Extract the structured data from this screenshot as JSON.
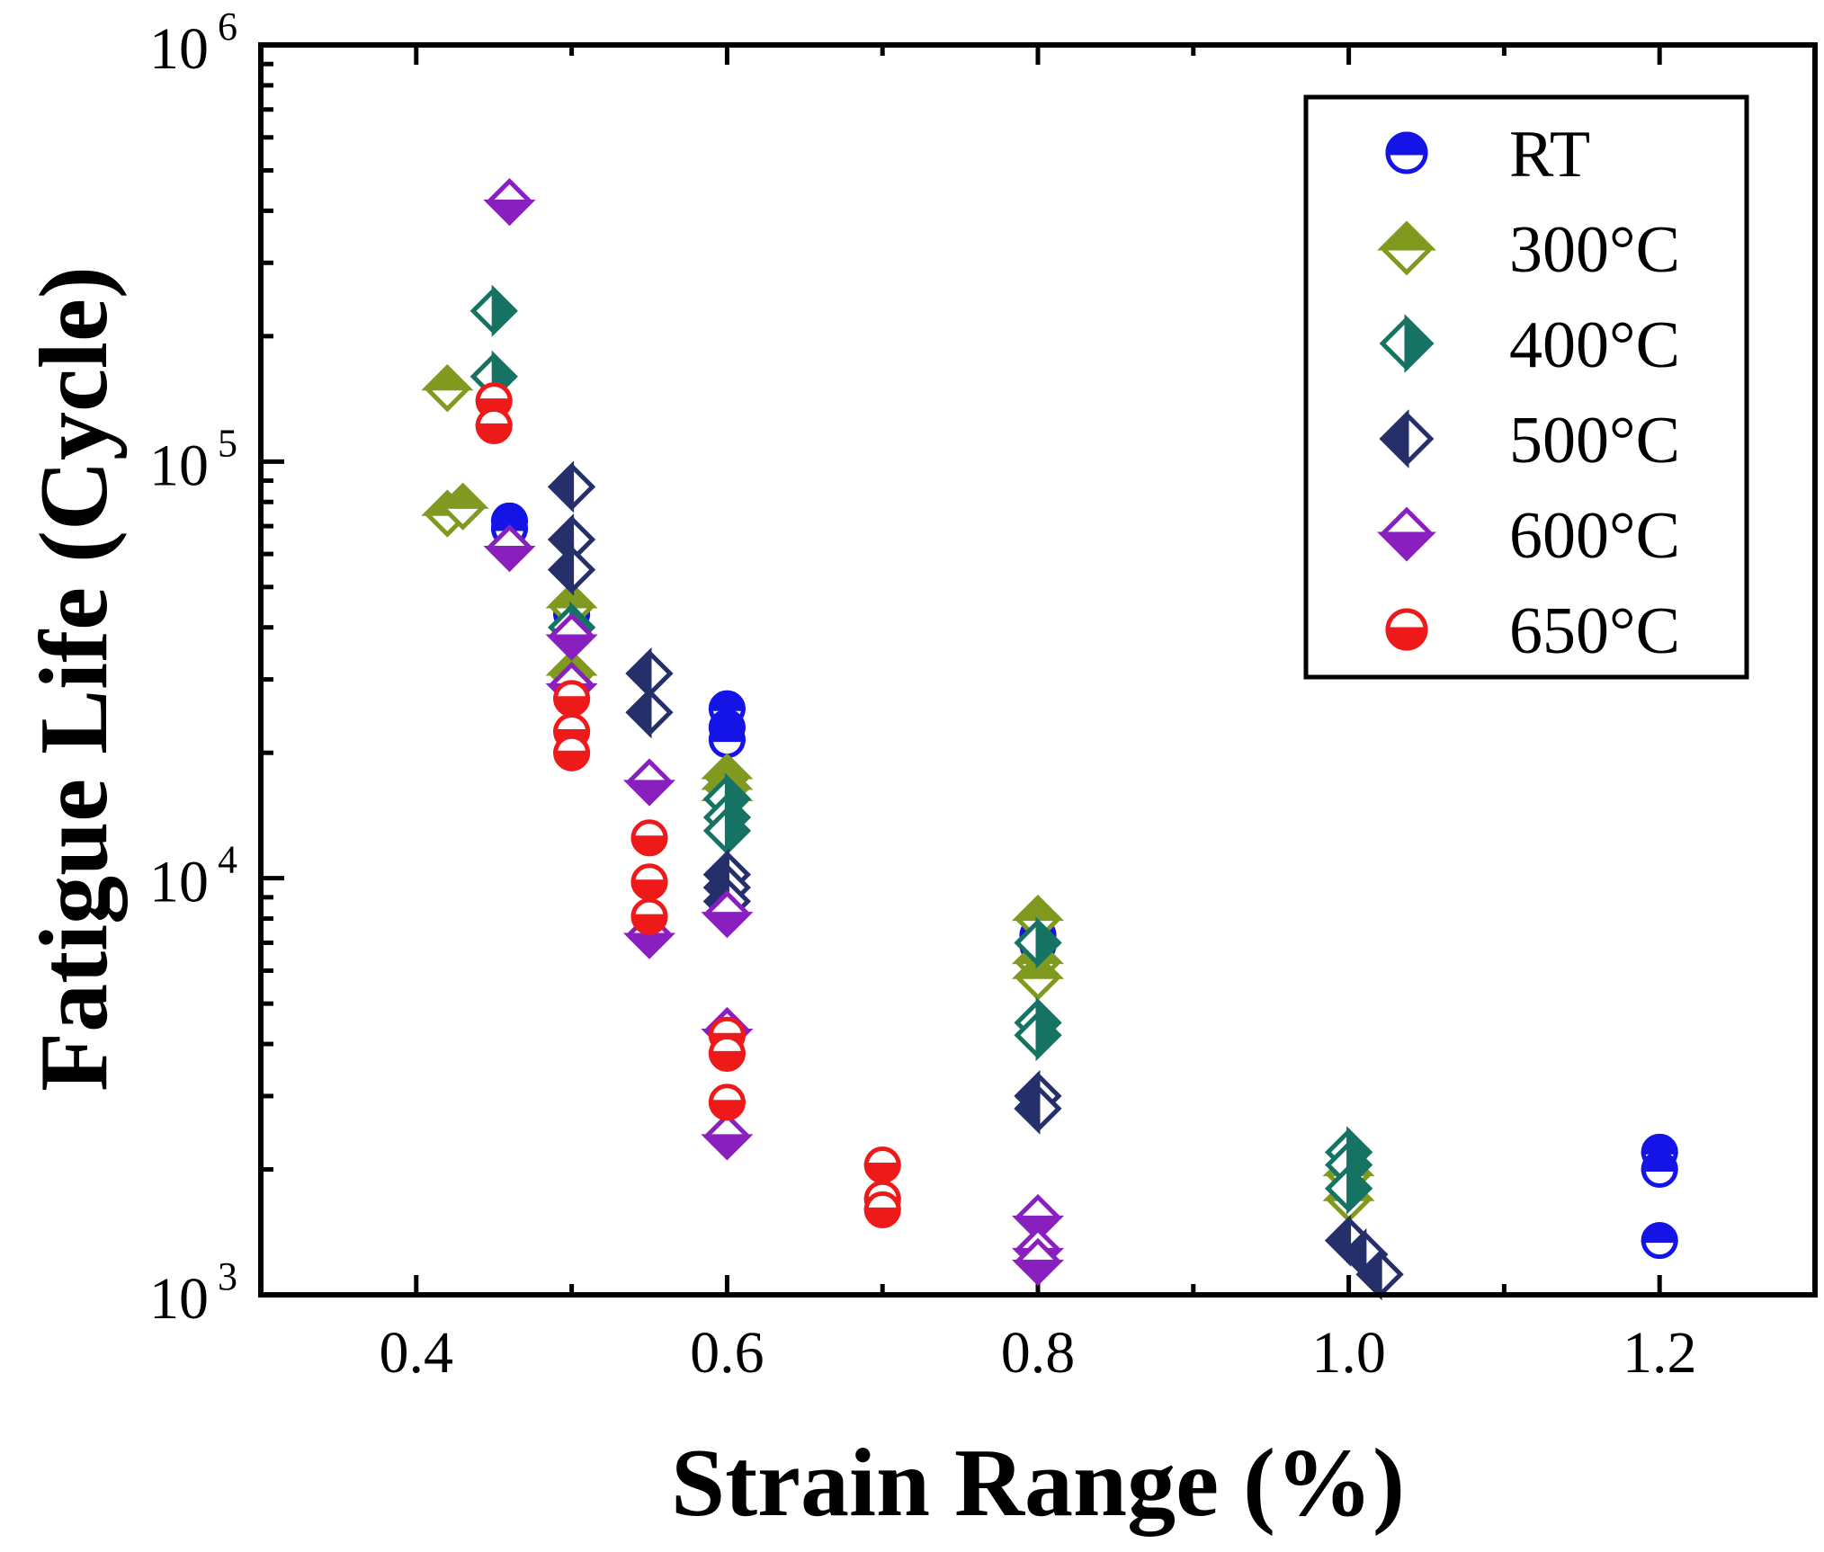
{
  "chart_data": {
    "type": "scatter",
    "title": "",
    "xlabel": "Strain Range (%)",
    "ylabel": "Fatigue Life (Cycle)",
    "xlim": [
      0.3,
      1.3
    ],
    "ylim": [
      1000,
      1000000
    ],
    "yscale": "log",
    "x_ticks": [
      0.4,
      0.6,
      0.8,
      1.0,
      1.2
    ],
    "x_tick_labels": [
      "0.4",
      "0.6",
      "0.8",
      "1.0",
      "1.2"
    ],
    "y_ticks": [
      {
        "base": "10",
        "exp": "3",
        "value": 1000
      },
      {
        "base": "10",
        "exp": "4",
        "value": 10000
      },
      {
        "base": "10",
        "exp": "5",
        "value": 100000
      },
      {
        "base": "10",
        "exp": "6",
        "value": 1000000
      }
    ],
    "legend_position": "top-right",
    "series": [
      {
        "name": "RT",
        "color": "#1414e6",
        "marker": "circle-half-top",
        "points": [
          [
            0.46,
            72000
          ],
          [
            0.46,
            69000
          ],
          [
            0.5,
            43000
          ],
          [
            0.6,
            25500
          ],
          [
            0.6,
            23000
          ],
          [
            0.6,
            21500
          ],
          [
            0.8,
            7300
          ],
          [
            0.8,
            6900
          ],
          [
            1.2,
            2200
          ],
          [
            1.2,
            2000
          ],
          [
            1.2,
            1350
          ]
        ]
      },
      {
        "name": "300°C",
        "color": "#7f9a1e",
        "marker": "diamond-half-top",
        "points": [
          [
            0.42,
            150000
          ],
          [
            0.42,
            75000
          ],
          [
            0.43,
            78000
          ],
          [
            0.5,
            45000
          ],
          [
            0.5,
            31000
          ],
          [
            0.6,
            17500
          ],
          [
            0.6,
            16500
          ],
          [
            0.6,
            15500
          ],
          [
            0.8,
            8000
          ],
          [
            0.8,
            6300
          ],
          [
            0.8,
            5800
          ],
          [
            1.0,
            1950
          ],
          [
            1.0,
            1700
          ]
        ]
      },
      {
        "name": "400°C",
        "color": "#167262",
        "marker": "diamond-half-right",
        "points": [
          [
            0.45,
            230000
          ],
          [
            0.45,
            160000
          ],
          [
            0.5,
            40000
          ],
          [
            0.6,
            15500
          ],
          [
            0.6,
            14000
          ],
          [
            0.6,
            13000
          ],
          [
            0.8,
            7000
          ],
          [
            0.8,
            4500
          ],
          [
            0.8,
            4200
          ],
          [
            1.0,
            2200
          ],
          [
            1.0,
            2050
          ],
          [
            1.0,
            1800
          ]
        ]
      },
      {
        "name": "500°C",
        "color": "#25306b",
        "marker": "diamond-half-left",
        "points": [
          [
            0.5,
            87000
          ],
          [
            0.5,
            65000
          ],
          [
            0.5,
            55000
          ],
          [
            0.55,
            31000
          ],
          [
            0.55,
            25000
          ],
          [
            0.6,
            10200
          ],
          [
            0.6,
            9500
          ],
          [
            0.6,
            8800
          ],
          [
            0.8,
            3000
          ],
          [
            0.8,
            2800
          ],
          [
            1.0,
            1350
          ],
          [
            1.01,
            1250
          ],
          [
            1.02,
            1120
          ]
        ]
      },
      {
        "name": "600°C",
        "color": "#8a1fbf",
        "marker": "diamond-half-bottom",
        "points": [
          [
            0.46,
            420000
          ],
          [
            0.46,
            62000
          ],
          [
            0.5,
            38000
          ],
          [
            0.5,
            29000
          ],
          [
            0.55,
            17000
          ],
          [
            0.55,
            7300
          ],
          [
            0.6,
            8200
          ],
          [
            0.6,
            4300
          ],
          [
            0.6,
            2400
          ],
          [
            0.8,
            1530
          ],
          [
            0.8,
            1280
          ],
          [
            0.8,
            1200
          ]
        ]
      },
      {
        "name": "650°C",
        "color": "#ee1a1a",
        "marker": "circle-half-bottom",
        "points": [
          [
            0.45,
            140000
          ],
          [
            0.45,
            122000
          ],
          [
            0.5,
            27000
          ],
          [
            0.5,
            22500
          ],
          [
            0.5,
            20000
          ],
          [
            0.55,
            12500
          ],
          [
            0.55,
            9800
          ],
          [
            0.55,
            8100
          ],
          [
            0.6,
            4200
          ],
          [
            0.6,
            3800
          ],
          [
            0.6,
            2900
          ],
          [
            0.7,
            2050
          ],
          [
            0.7,
            1700
          ],
          [
            0.7,
            1600
          ]
        ]
      }
    ]
  }
}
